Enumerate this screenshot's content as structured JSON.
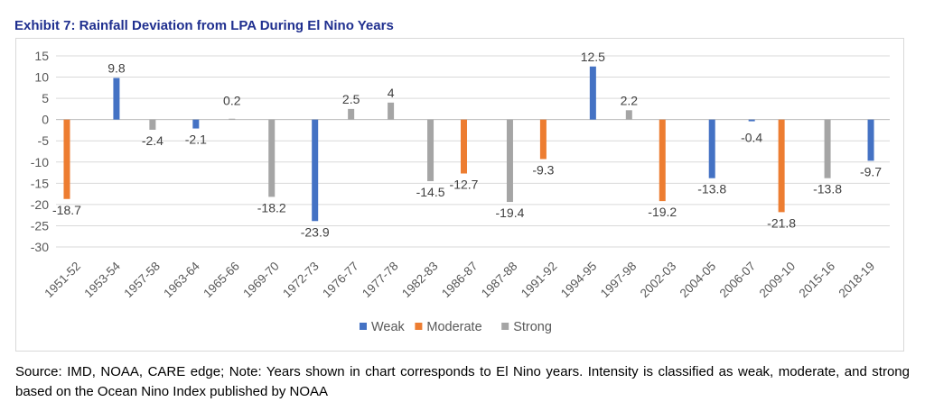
{
  "title": "Exhibit 7: Rainfall Deviation from LPA During El Nino Years",
  "source_note": "Source: IMD, NOAA, CARE edge; Note: Years shown in chart corresponds to El Nino years. Intensity is classified as weak, moderate, and strong based on the Ocean Nino Index published by NOAA",
  "chart_data": {
    "type": "bar",
    "categories": [
      "1951-52",
      "1953-54",
      "1957-58",
      "1963-64",
      "1965-66",
      "1969-70",
      "1972-73",
      "1976-77",
      "1977-78",
      "1982-83",
      "1986-87",
      "1987-88",
      "1991-92",
      "1994-95",
      "1997-98",
      "2002-03",
      "2004-05",
      "2006-07",
      "2009-10",
      "2015-16",
      "2018-19"
    ],
    "series": [
      {
        "name": "Weak",
        "color": "#4472c4",
        "values": [
          null,
          9.8,
          null,
          -2.1,
          null,
          null,
          -23.9,
          null,
          null,
          null,
          null,
          null,
          null,
          12.5,
          null,
          null,
          -13.8,
          -0.4,
          null,
          null,
          -9.7
        ]
      },
      {
        "name": "Moderate",
        "color": "#ed7d31",
        "values": [
          -18.7,
          null,
          null,
          null,
          null,
          null,
          null,
          null,
          null,
          null,
          -12.7,
          null,
          -9.3,
          null,
          null,
          -19.2,
          null,
          null,
          -21.8,
          null,
          null
        ]
      },
      {
        "name": "Strong",
        "color": "#a5a5a5",
        "values": [
          null,
          null,
          -2.4,
          null,
          0.2,
          -18.2,
          null,
          2.5,
          4,
          -14.5,
          null,
          -19.4,
          null,
          null,
          2.2,
          null,
          null,
          null,
          null,
          -13.8,
          null
        ]
      }
    ],
    "ylim": [
      -30,
      15
    ],
    "yticks": [
      15,
      10,
      5,
      0,
      -5,
      -10,
      -15,
      -20,
      -25,
      -30
    ],
    "xlabel": "",
    "ylabel": "",
    "grid": true,
    "legend_position": "bottom"
  }
}
